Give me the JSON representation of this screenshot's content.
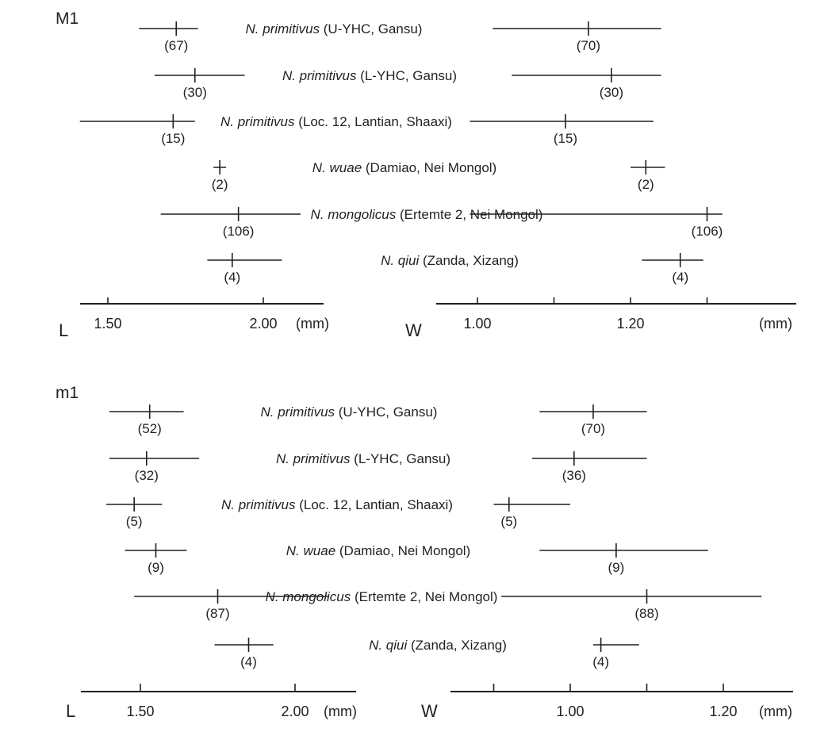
{
  "chart_data": [
    {
      "type": "range",
      "panel_label": "M1",
      "rows": [
        {
          "label_italic": "N. primitivus",
          "label_rest": " (U-YHC, Gansu)",
          "length": {
            "min": 1.6,
            "max": 1.79,
            "mean": 1.72,
            "n": "(67)"
          },
          "width": {
            "min": 1.02,
            "max": 1.24,
            "mean": 1.145,
            "n": "(70)"
          }
        },
        {
          "label_italic": "N. primitivus",
          "label_rest": " (L-YHC, Gansu)",
          "length": {
            "min": 1.65,
            "max": 1.94,
            "mean": 1.78,
            "n": "(30)"
          },
          "width": {
            "min": 1.045,
            "max": 1.24,
            "mean": 1.175,
            "n": "(30)"
          }
        },
        {
          "label_italic": "N. primitivus",
          "label_rest": " (Loc. 12, Lantian, Shaaxi)",
          "length": {
            "min": 1.41,
            "max": 1.78,
            "mean": 1.71,
            "n": "(15)"
          },
          "width": {
            "min": 0.99,
            "max": 1.23,
            "mean": 1.115,
            "n": "(15)"
          }
        },
        {
          "label_italic": "N. wuae",
          "label_rest": " (Damiao, Nei Mongol)",
          "length": {
            "min": 1.86,
            "max": 1.86,
            "mean": 1.86,
            "n": "(2)"
          },
          "width": {
            "min": 1.2,
            "max": 1.245,
            "mean": 1.22,
            "n": "(2)"
          }
        },
        {
          "label_italic": "N. mongolicus",
          "label_rest": " (Ertemte 2, Nei Mongol)",
          "length": {
            "min": 1.67,
            "max": 2.12,
            "mean": 1.92,
            "n": "(106)"
          },
          "width": {
            "min": 0.99,
            "max": 1.32,
            "mean": 1.3,
            "n": "(106)"
          }
        },
        {
          "label_italic": "N. qiui",
          "label_rest": " (Zanda, Xizang)",
          "length": {
            "min": 1.82,
            "max": 2.06,
            "mean": 1.9,
            "n": "(4)"
          },
          "width": {
            "min": 1.215,
            "max": 1.295,
            "mean": 1.265,
            "n": "(4)"
          }
        }
      ],
      "length_axis": {
        "letter": "L",
        "unit": "(mm)",
        "ticks": [
          {
            "value": 1.5,
            "label": "1.50"
          },
          {
            "value": 2.0,
            "label": "2.00"
          }
        ],
        "range": [
          1.41,
          2.19
        ]
      },
      "width_axis": {
        "letter": "W",
        "unit": "(mm)",
        "ticks": [
          {
            "value": 1.0,
            "label": "1.00"
          },
          {
            "value": 1.1,
            "label": ""
          },
          {
            "value": 1.2,
            "label": "1.20"
          },
          {
            "value": 1.3,
            "label": ""
          }
        ],
        "range": [
          0.895,
          1.325
        ]
      }
    },
    {
      "type": "range",
      "panel_label": "m1",
      "rows": [
        {
          "label_italic": "N. primitivus",
          "label_rest": " (U-YHC, Gansu)",
          "length": {
            "min": 1.4,
            "max": 1.64,
            "mean": 1.53,
            "n": "(52)"
          },
          "width": {
            "min": 0.96,
            "max": 1.1,
            "mean": 1.03,
            "n": "(70)"
          }
        },
        {
          "label_italic": "N. primitivus",
          "label_rest": " (L-YHC, Gansu)",
          "length": {
            "min": 1.4,
            "max": 1.69,
            "mean": 1.52,
            "n": "(32)"
          },
          "width": {
            "min": 0.95,
            "max": 1.1,
            "mean": 1.005,
            "n": "(36)"
          }
        },
        {
          "label_italic": "N. primitivus",
          "label_rest": " (Loc. 12, Lantian, Shaaxi)",
          "length": {
            "min": 1.39,
            "max": 1.57,
            "mean": 1.48,
            "n": "(5)"
          },
          "width": {
            "min": 0.9,
            "max": 1.0,
            "mean": 0.92,
            "n": "(5)"
          }
        },
        {
          "label_italic": "N. wuae",
          "label_rest": " (Damiao, Nei Mongol)",
          "length": {
            "min": 1.45,
            "max": 1.65,
            "mean": 1.55,
            "n": "(9)"
          },
          "width": {
            "min": 0.96,
            "max": 1.18,
            "mean": 1.06,
            "n": "(9)"
          }
        },
        {
          "label_italic": "N. mongolicus",
          "label_rest": " (Ertemte 2, Nei Mongol)",
          "length": {
            "min": 1.48,
            "max": 2.11,
            "mean": 1.75,
            "n": "(87)"
          },
          "width": {
            "min": 0.91,
            "max": 1.25,
            "mean": 1.1,
            "n": "(88)"
          }
        },
        {
          "label_italic": "N. qiui",
          "label_rest": " (Zanda, Xizang)",
          "length": {
            "min": 1.74,
            "max": 1.93,
            "mean": 1.85,
            "n": "(4)"
          },
          "width": {
            "min": 1.03,
            "max": 1.09,
            "mean": 1.04,
            "n": "(4)"
          }
        }
      ],
      "length_axis": {
        "letter": "L",
        "unit": "(mm)",
        "ticks": [
          {
            "value": 1.5,
            "label": "1.50"
          },
          {
            "value": 2.0,
            "label": "2.00"
          }
        ],
        "range": [
          1.31,
          2.2
        ]
      },
      "width_axis": {
        "letter": "W",
        "unit": "(mm)",
        "ticks": [
          {
            "value": 0.9,
            "label": ""
          },
          {
            "value": 1.0,
            "label": "1.00"
          },
          {
            "value": 1.1,
            "label": ""
          },
          {
            "value": 1.2,
            "label": "1.20"
          }
        ],
        "range": [
          0.845,
          1.295
        ]
      }
    }
  ]
}
